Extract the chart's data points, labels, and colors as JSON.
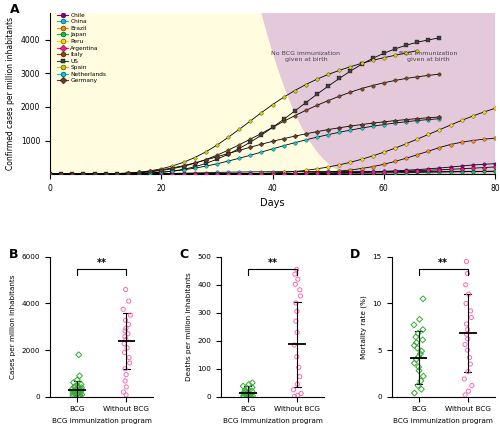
{
  "panel_A": {
    "title": "A",
    "ylabel": "Confirmed cases per million inhabitants",
    "xlabel": "Days",
    "xlim": [
      0,
      80
    ],
    "ylim": [
      0,
      4800
    ],
    "yticks": [
      1000,
      2000,
      3000,
      4000
    ],
    "xticks": [
      0,
      20,
      40,
      60,
      80
    ],
    "annotation_yellow": "No BCG immunization\ngiven at birth",
    "annotation_pink": "BCG immunization\ngiven at birth",
    "countries": [
      {
        "name": "Chile",
        "color": "#8B008B",
        "marker": "o",
        "lcolor": "black",
        "data_x": [
          0,
          2,
          4,
          6,
          8,
          10,
          12,
          14,
          16,
          18,
          20,
          22,
          24,
          26,
          28,
          30,
          32,
          34,
          36,
          38,
          40,
          42,
          44,
          46,
          48,
          50,
          52,
          54,
          56,
          58,
          60,
          62,
          64,
          66,
          68,
          70,
          72,
          74,
          76,
          78,
          80
        ],
        "data_y": [
          0,
          0,
          0,
          0,
          0,
          0,
          0,
          0,
          0,
          0,
          0,
          1,
          1,
          2,
          2,
          3,
          4,
          5,
          6,
          8,
          10,
          13,
          16,
          20,
          25,
          30,
          38,
          46,
          56,
          68,
          80,
          95,
          112,
          132,
          155,
          180,
          208,
          240,
          270,
          290,
          310
        ]
      },
      {
        "name": "China",
        "color": "#00BFFF",
        "marker": "o",
        "lcolor": "black",
        "data_x": [
          0,
          2,
          4,
          6,
          8,
          10,
          12,
          14,
          16,
          18,
          20,
          22,
          24,
          26,
          28,
          30,
          32,
          34,
          36,
          38,
          40,
          42,
          44,
          46,
          48,
          50,
          52,
          54,
          56,
          58,
          60,
          62,
          64,
          66,
          68,
          70,
          72,
          74,
          76,
          78,
          80
        ],
        "data_y": [
          0,
          0,
          0,
          0,
          0,
          1,
          2,
          3,
          5,
          8,
          12,
          18,
          25,
          32,
          40,
          48,
          55,
          60,
          64,
          67,
          70,
          72,
          73,
          74,
          75,
          76,
          76,
          77,
          77,
          78,
          78,
          78,
          79,
          79,
          79,
          80,
          80,
          80,
          80,
          80,
          80
        ]
      },
      {
        "name": "Brazil",
        "color": "#FF8C00",
        "marker": "o",
        "lcolor": "black",
        "data_x": [
          0,
          2,
          4,
          6,
          8,
          10,
          12,
          14,
          16,
          18,
          20,
          22,
          24,
          26,
          28,
          30,
          32,
          34,
          36,
          38,
          40,
          42,
          44,
          46,
          48,
          50,
          52,
          54,
          56,
          58,
          60,
          62,
          64,
          66,
          68,
          70,
          72,
          74,
          76,
          78,
          80
        ],
        "data_y": [
          0,
          0,
          0,
          0,
          0,
          0,
          0,
          0,
          0,
          0,
          0,
          0,
          0,
          0,
          0,
          1,
          1,
          2,
          3,
          5,
          8,
          12,
          18,
          28,
          42,
          62,
          88,
          120,
          165,
          220,
          290,
          375,
          470,
          575,
          680,
          790,
          880,
          950,
          1000,
          1040,
          1070
        ]
      },
      {
        "name": "Japan",
        "color": "#00CC44",
        "marker": "o",
        "lcolor": "black",
        "data_x": [
          0,
          2,
          4,
          6,
          8,
          10,
          12,
          14,
          16,
          18,
          20,
          22,
          24,
          26,
          28,
          30,
          32,
          34,
          36,
          38,
          40,
          42,
          44,
          46,
          48,
          50,
          52,
          54,
          56,
          58,
          60,
          62,
          64,
          66,
          68,
          70,
          72,
          74,
          76,
          78,
          80
        ],
        "data_y": [
          0,
          0,
          0,
          0,
          0,
          0,
          0,
          0,
          0,
          0,
          1,
          1,
          2,
          2,
          3,
          4,
          5,
          6,
          7,
          8,
          10,
          11,
          13,
          15,
          17,
          19,
          22,
          25,
          28,
          32,
          36,
          40,
          44,
          49,
          54,
          59,
          64,
          69,
          74,
          79,
          84
        ]
      },
      {
        "name": "Peru",
        "color": "#FFD700",
        "marker": "o",
        "lcolor": "black",
        "data_x": [
          0,
          2,
          4,
          6,
          8,
          10,
          12,
          14,
          16,
          18,
          20,
          22,
          24,
          26,
          28,
          30,
          32,
          34,
          36,
          38,
          40,
          42,
          44,
          46,
          48,
          50,
          52,
          54,
          56,
          58,
          60,
          62,
          64,
          66,
          68,
          70,
          72,
          74,
          76,
          78,
          80
        ],
        "data_y": [
          0,
          0,
          0,
          0,
          0,
          0,
          0,
          0,
          0,
          0,
          0,
          0,
          0,
          0,
          1,
          2,
          4,
          7,
          12,
          20,
          32,
          50,
          75,
          110,
          155,
          210,
          275,
          350,
          440,
          540,
          650,
          770,
          900,
          1040,
          1180,
          1320,
          1460,
          1600,
          1730,
          1850,
          1960
        ]
      },
      {
        "name": "Argentina",
        "color": "#FF1493",
        "marker": "D",
        "lcolor": "black",
        "data_x": [
          0,
          2,
          4,
          6,
          8,
          10,
          12,
          14,
          16,
          18,
          20,
          22,
          24,
          26,
          28,
          30,
          32,
          34,
          36,
          38,
          40,
          42,
          44,
          46,
          48,
          50,
          52,
          54,
          56,
          58,
          60,
          62,
          64,
          66,
          68,
          70,
          72,
          74,
          76,
          78,
          80
        ],
        "data_y": [
          0,
          0,
          0,
          0,
          0,
          0,
          0,
          0,
          0,
          0,
          0,
          0,
          1,
          1,
          2,
          3,
          4,
          5,
          7,
          9,
          11,
          14,
          17,
          21,
          25,
          30,
          36,
          43,
          50,
          58,
          67,
          77,
          88,
          100,
          113,
          127,
          142,
          158,
          175,
          193,
          212
        ]
      },
      {
        "name": "Italy",
        "color": "#8B4513",
        "marker": "o",
        "lcolor": "black",
        "data_x": [
          0,
          2,
          4,
          6,
          8,
          10,
          12,
          14,
          16,
          18,
          20,
          22,
          24,
          26,
          28,
          30,
          32,
          34,
          36,
          38,
          40,
          42,
          44,
          46,
          48,
          50,
          52,
          54,
          56,
          58,
          60,
          62,
          64,
          66,
          68,
          70
        ],
        "data_y": [
          0,
          0,
          0,
          1,
          2,
          5,
          10,
          20,
          38,
          65,
          105,
          160,
          230,
          320,
          430,
          560,
          710,
          870,
          1040,
          1210,
          1390,
          1570,
          1740,
          1900,
          2050,
          2190,
          2320,
          2440,
          2550,
          2640,
          2720,
          2790,
          2850,
          2900,
          2940,
          2980
        ]
      },
      {
        "name": "US",
        "color": "#404040",
        "marker": "s",
        "lcolor": "black",
        "data_x": [
          0,
          2,
          4,
          6,
          8,
          10,
          12,
          14,
          16,
          18,
          20,
          22,
          24,
          26,
          28,
          30,
          32,
          34,
          36,
          38,
          40,
          42,
          44,
          46,
          48,
          50,
          52,
          54,
          56,
          58,
          60,
          62,
          64,
          66,
          68,
          70
        ],
        "data_y": [
          0,
          0,
          0,
          0,
          1,
          2,
          4,
          8,
          15,
          28,
          50,
          85,
          140,
          215,
          315,
          440,
          590,
          760,
          950,
          1160,
          1390,
          1630,
          1880,
          2130,
          2380,
          2620,
          2850,
          3070,
          3270,
          3450,
          3600,
          3730,
          3840,
          3930,
          4000,
          4060
        ]
      },
      {
        "name": "Spain",
        "color": "#CCCC00",
        "marker": "o",
        "lcolor": "black",
        "data_x": [
          0,
          2,
          4,
          6,
          8,
          10,
          12,
          14,
          16,
          18,
          20,
          22,
          24,
          26,
          28,
          30,
          32,
          34,
          36,
          38,
          40,
          42,
          44,
          46,
          48,
          50,
          52,
          54,
          56,
          58,
          60,
          62,
          64,
          66
        ],
        "data_y": [
          0,
          0,
          0,
          1,
          3,
          7,
          15,
          30,
          55,
          95,
          155,
          240,
          350,
          490,
          660,
          860,
          1090,
          1330,
          1580,
          1830,
          2070,
          2290,
          2490,
          2670,
          2830,
          2970,
          3090,
          3200,
          3300,
          3390,
          3470,
          3540,
          3610,
          3680
        ]
      },
      {
        "name": "Netherlands",
        "color": "#00CED1",
        "marker": "o",
        "lcolor": "black",
        "data_x": [
          0,
          2,
          4,
          6,
          8,
          10,
          12,
          14,
          16,
          18,
          20,
          22,
          24,
          26,
          28,
          30,
          32,
          34,
          36,
          38,
          40,
          42,
          44,
          46,
          48,
          50,
          52,
          54,
          56,
          58,
          60,
          62,
          64,
          66,
          68,
          70
        ],
        "data_y": [
          0,
          0,
          0,
          0,
          1,
          2,
          5,
          10,
          18,
          32,
          54,
          85,
          125,
          175,
          235,
          305,
          385,
          470,
          560,
          655,
          750,
          845,
          935,
          1020,
          1100,
          1175,
          1245,
          1310,
          1370,
          1425,
          1475,
          1520,
          1560,
          1595,
          1625,
          1650
        ]
      },
      {
        "name": "Germany",
        "color": "#6B3A2A",
        "marker": "D",
        "lcolor": "black",
        "data_x": [
          0,
          2,
          4,
          6,
          8,
          10,
          12,
          14,
          16,
          18,
          20,
          22,
          24,
          26,
          28,
          30,
          32,
          34,
          36,
          38,
          40,
          42,
          44,
          46,
          48,
          50,
          52,
          54,
          56,
          58,
          60,
          62,
          64,
          66,
          68,
          70
        ],
        "data_y": [
          0,
          0,
          0,
          1,
          3,
          7,
          14,
          27,
          48,
          80,
          125,
          182,
          250,
          330,
          420,
          515,
          610,
          705,
          800,
          890,
          975,
          1055,
          1130,
          1200,
          1265,
          1325,
          1380,
          1430,
          1476,
          1518,
          1557,
          1592,
          1624,
          1653,
          1679,
          1702
        ]
      }
    ]
  },
  "panel_B": {
    "title": "B",
    "ylabel": "Cases per million inhabitants",
    "xlabel": "BCG immunization program",
    "ylim": [
      0,
      6000
    ],
    "yticks": [
      0,
      2000,
      4000,
      6000
    ],
    "bcg_values": [
      42,
      55,
      68,
      80,
      92,
      105,
      118,
      130,
      145,
      158,
      170,
      185,
      200,
      218,
      235,
      252,
      270,
      290,
      312,
      335,
      360,
      390,
      425,
      470,
      530,
      610,
      720,
      900,
      1800
    ],
    "no_bcg_values": [
      80,
      200,
      420,
      680,
      950,
      1200,
      1450,
      1680,
      1900,
      2100,
      2280,
      2450,
      2580,
      2700,
      2820,
      2940,
      3100,
      3280,
      3500,
      3750,
      4100,
      4600
    ],
    "bcg_mean": 280,
    "bcg_sd": 380,
    "no_bcg_mean": 2400,
    "no_bcg_sd": 1200,
    "significance": "**",
    "bcg_color": "#33AA33",
    "no_bcg_color": "#FF69B4",
    "bcg_marker": "D",
    "no_bcg_marker": "o"
  },
  "panel_C": {
    "title": "C",
    "ylabel": "Deaths per million inhabitants",
    "xlabel": "BCG immunization program",
    "ylim": [
      0,
      500
    ],
    "yticks": [
      0,
      100,
      200,
      300,
      400,
      500
    ],
    "bcg_values": [
      0.5,
      1,
      1.5,
      2,
      2.5,
      3,
      4,
      5,
      6,
      7,
      8,
      10,
      12,
      14,
      17,
      20,
      24,
      28,
      33,
      38,
      44,
      50
    ],
    "no_bcg_values": [
      1,
      5,
      12,
      25,
      45,
      72,
      105,
      143,
      185,
      230,
      270,
      305,
      335,
      360,
      382,
      402,
      420,
      438,
      455
    ],
    "bcg_mean": 15,
    "bcg_sd": 22,
    "no_bcg_mean": 188,
    "no_bcg_sd": 152,
    "significance": "**",
    "bcg_color": "#33AA33",
    "no_bcg_color": "#FF69B4",
    "bcg_marker": "D",
    "no_bcg_marker": "o"
  },
  "panel_D": {
    "title": "D",
    "ylabel": "Mortality rate (%)",
    "xlabel": "BCG immunization program",
    "ylim": [
      0,
      15
    ],
    "yticks": [
      0,
      5,
      10,
      15
    ],
    "bcg_values": [
      0.4,
      0.8,
      1.2,
      1.7,
      2.2,
      2.8,
      3.2,
      3.6,
      4.0,
      4.3,
      4.6,
      4.9,
      5.2,
      5.5,
      5.8,
      6.1,
      6.4,
      6.8,
      7.2,
      7.7,
      8.3,
      10.5
    ],
    "no_bcg_values": [
      0.2,
      0.6,
      1.2,
      1.9,
      2.7,
      3.5,
      4.2,
      5.0,
      5.6,
      6.2,
      6.7,
      7.2,
      7.8,
      8.5,
      9.2,
      10.0,
      11.0,
      12.0,
      13.2,
      14.5
    ],
    "bcg_mean": 4.2,
    "bcg_sd": 2.8,
    "no_bcg_mean": 6.8,
    "no_bcg_sd": 4.2,
    "significance": "**",
    "bcg_color": "#33AA33",
    "no_bcg_color": "#FF69B4",
    "bcg_marker": "D",
    "no_bcg_marker": "o"
  }
}
